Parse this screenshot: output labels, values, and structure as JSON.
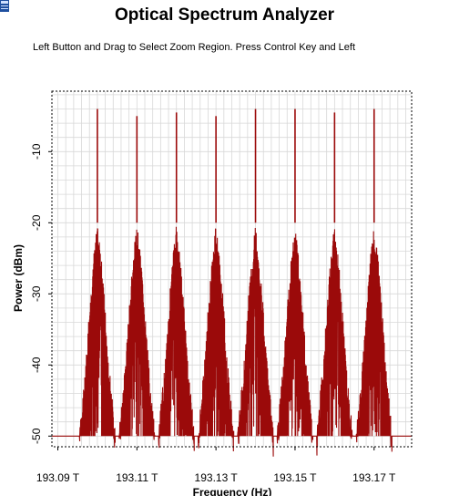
{
  "window": {
    "icon": "spectrum-window-icon"
  },
  "title": "Optical Spectrum Analyzer",
  "instruction": "Left Button and Drag to Select Zoom Region. Press Control Key and Left",
  "colors": {
    "trace": "#9b0a0a",
    "grid": "#d8d8d8",
    "frame": "#000000",
    "background": "#ffffff"
  },
  "chart_data": {
    "type": "line",
    "title": "Optical Spectrum Analyzer",
    "xlabel": "Frequency (Hz)",
    "ylabel": "Power (dBm)",
    "xlim": [
      193.0885,
      193.1795
    ],
    "ylim": [
      -51.5,
      -1.5
    ],
    "x_ticks": [
      193.09,
      193.11,
      193.13,
      193.15,
      193.17
    ],
    "x_tick_labels": [
      "193.09 T",
      "193.11 T",
      "193.13 T",
      "193.15 T",
      "193.17 T"
    ],
    "y_ticks": [
      -10,
      -20,
      -30,
      -40,
      -50
    ],
    "y_tick_labels": [
      "-10",
      "-20",
      "-30",
      "-40",
      "-50"
    ],
    "grid": true,
    "noise_floor": -50,
    "series": [
      {
        "peaks": [
          {
            "x": 193.1,
            "y": -4
          },
          {
            "x": 193.11,
            "y": -5
          },
          {
            "x": 193.12,
            "y": -4.5
          },
          {
            "x": 193.13,
            "y": -5
          },
          {
            "x": 193.14,
            "y": -4
          },
          {
            "x": 193.15,
            "y": -4
          },
          {
            "x": 193.16,
            "y": -4.5
          },
          {
            "x": 193.17,
            "y": -4
          }
        ],
        "sideband_peak": -20,
        "sideband_decay": [
          {
            "offset": 0.001,
            "y": -25
          },
          {
            "offset": 0.002,
            "y": -32
          },
          {
            "offset": 0.003,
            "y": -40
          },
          {
            "offset": 0.0045,
            "y": -49
          }
        ]
      }
    ]
  }
}
